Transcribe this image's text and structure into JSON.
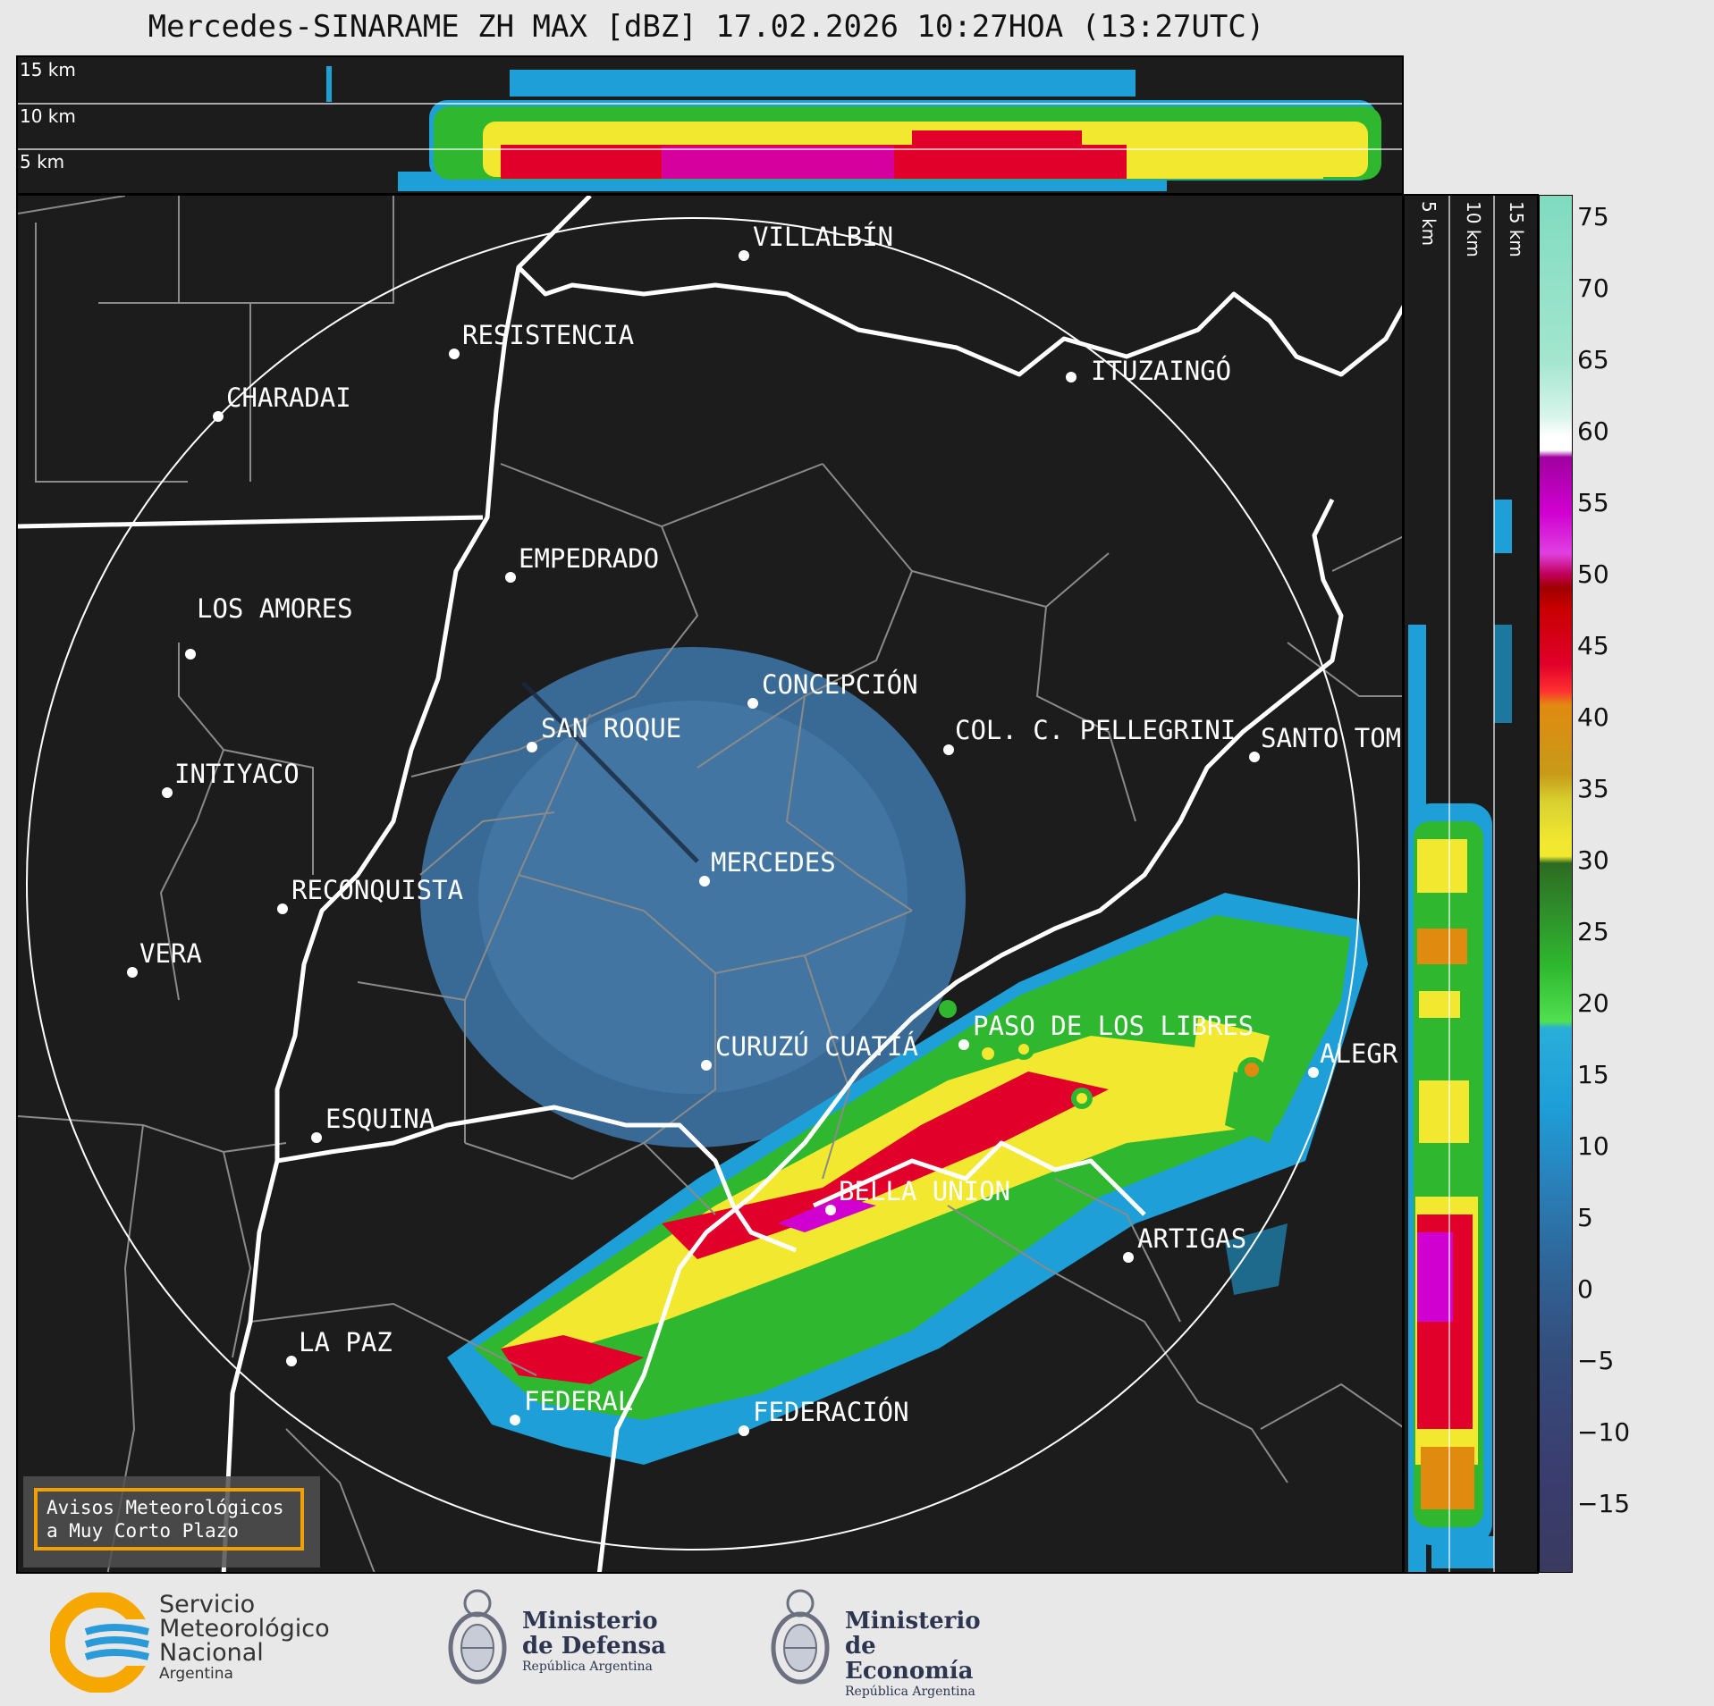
{
  "title": "Mercedes-SINARAME ZH MAX [dBZ] 17.02.2026 10:27HOA (13:27UTC)",
  "height_labels": [
    "15 km",
    "10 km",
    "5 km"
  ],
  "colorbar": {
    "unit": "dBZ",
    "ticks": [
      "75",
      "70",
      "65",
      "60",
      "55",
      "50",
      "45",
      "40",
      "35",
      "30",
      "25",
      "20",
      "15",
      "10",
      "5",
      "0",
      "−5",
      "−10",
      "−15"
    ],
    "range": [
      -20,
      77
    ],
    "colors": {
      "teal": "#7fdbbf",
      "white": "#ffffff",
      "magenta": "#d000d0",
      "red": "#e0002a",
      "orange": "#e08a10",
      "yellow": "#f2e830",
      "green": "#2fb82f",
      "blue": "#1e9fd8",
      "steel": "#3b6f9c",
      "navy": "#3a3e70"
    }
  },
  "cities": [
    {
      "name": "VILLALBÍN"
    },
    {
      "name": "RESISTENCIA"
    },
    {
      "name": "CHARADAI"
    },
    {
      "name": "ITUZAINGÓ"
    },
    {
      "name": "EMPEDRADO"
    },
    {
      "name": "LOS AMORES"
    },
    {
      "name": "CONCEPCIÓN"
    },
    {
      "name": "SAN ROQUE"
    },
    {
      "name": "COL. C. PELLEGRINI"
    },
    {
      "name": "SANTO TOM"
    },
    {
      "name": "INTIYACO"
    },
    {
      "name": "RECONQUISTA"
    },
    {
      "name": "MERCEDES"
    },
    {
      "name": "VERA"
    },
    {
      "name": "PASO DE LOS LIBRES"
    },
    {
      "name": "CURUZÚ CUATIÁ"
    },
    {
      "name": "ALEGR"
    },
    {
      "name": "ESQUINA"
    },
    {
      "name": "BELLA UNION"
    },
    {
      "name": "ARTIGAS"
    },
    {
      "name": "LA PAZ"
    },
    {
      "name": "FEDERAL"
    },
    {
      "name": "FEDERACIÓN"
    }
  ],
  "alert": {
    "line1": "Avisos Meteorológicos",
    "line2": "a Muy Corto Plazo"
  },
  "logos": {
    "smn": {
      "line1": "Servicio",
      "line2": "Meteorológico",
      "line3": "Nacional",
      "line4": "Argentina"
    },
    "defensa": {
      "line1": "Ministerio",
      "line2": "de Defensa",
      "line3": "República Argentina"
    },
    "economia": {
      "line1": "Ministerio",
      "line2": "de Economía",
      "line3": "República Argentina"
    }
  }
}
